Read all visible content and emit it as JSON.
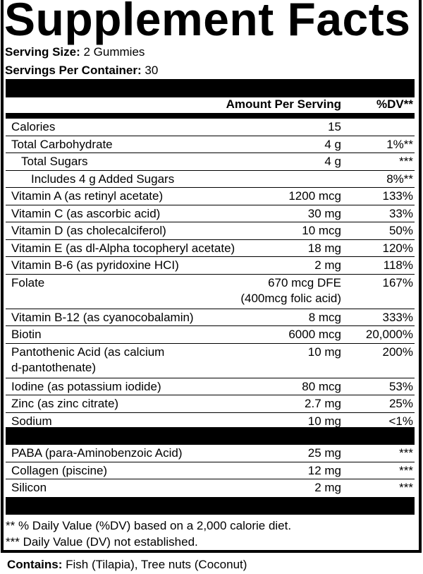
{
  "title": "Supplement Facts",
  "serving_size": {
    "label": "Serving Size:",
    "value": "2 Gummies"
  },
  "servings_per_container": {
    "label": "Servings Per Container:",
    "value": "30"
  },
  "header": {
    "amount": "Amount Per Serving",
    "dv": "%DV**"
  },
  "nutrients": [
    {
      "name": "Calories",
      "amount": "15",
      "dv": ""
    },
    {
      "name": "Total Carbohydrate",
      "amount": "4 g",
      "dv": "1%**"
    },
    {
      "name": "Total Sugars",
      "amount": "4 g",
      "dv": "***"
    },
    {
      "name": "Includes 4 g Added Sugars",
      "amount": "",
      "dv": "8%**"
    },
    {
      "name": "Vitamin A (as retinyl acetate)",
      "amount": "1200 mcg",
      "dv": "133%"
    },
    {
      "name": "Vitamin C (as ascorbic acid)",
      "amount": "30 mg",
      "dv": "33%"
    },
    {
      "name": "Vitamin D (as cholecalciferol)",
      "amount": "10 mcg",
      "dv": "50%"
    },
    {
      "name": "Vitamin E (as dl-Alpha tocopheryl acetate)",
      "amount": "18 mg",
      "dv": "120%"
    },
    {
      "name": "Vitamin B-6 (as pyridoxine HCI)",
      "amount": "2 mg",
      "dv": "118%"
    },
    {
      "name": "Folate",
      "amount": "670 mcg DFE",
      "amount2": "(400mcg folic acid)",
      "dv": "167%"
    },
    {
      "name": "Vitamin B-12 (as cyanocobalamin)",
      "amount": "8 mcg",
      "dv": "333%"
    },
    {
      "name": "Biotin",
      "amount": "6000 mcg",
      "dv": "20,000%"
    },
    {
      "name": "Pantothenic Acid (as calcium",
      "name2": "d-pantothenate)",
      "amount": "10 mg",
      "dv": "200%"
    },
    {
      "name": "Iodine (as potassium iodide)",
      "amount": "80 mcg",
      "dv": "53%"
    },
    {
      "name": "Zinc (as zinc citrate)",
      "amount": "2.7 mg",
      "dv": "25%"
    },
    {
      "name": "Sodium",
      "amount": "10 mg",
      "dv": "<1%"
    }
  ],
  "other_ingredients": [
    {
      "name": "PABA (para-Aminobenzoic Acid)",
      "amount": "25 mg",
      "dv": "***"
    },
    {
      "name": "Collagen (piscine)",
      "amount": "12 mg",
      "dv": "***"
    },
    {
      "name": "Silicon",
      "amount": "2 mg",
      "dv": "***"
    }
  ],
  "footnotes": [
    "** % Daily Value (%DV) based on a 2,000 calorie diet.",
    "*** Daily Value (DV) not established."
  ],
  "contains": {
    "label": "Contains:",
    "value": "Fish (Tilapia), Tree nuts (Coconut)"
  }
}
